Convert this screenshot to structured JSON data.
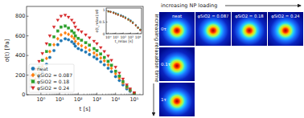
{
  "chart_data": [
    {
      "type": "scatter",
      "x_label": "t [s]",
      "y_label": "σ(t) [Pa]",
      "x": [
        0.3,
        0.5,
        0.8,
        1.2,
        2,
        3,
        5,
        8,
        12,
        20,
        30,
        45,
        60,
        70,
        100,
        150,
        250,
        400,
        700,
        1000,
        1600,
        2500,
        4000,
        6000,
        10000,
        16000,
        25000,
        40000,
        60000,
        100000
      ],
      "series": [
        {
          "name": "neat",
          "color": "#1f77b4",
          "marker": "circle",
          "values": [
            80,
            120,
            170,
            230,
            310,
            380,
            450,
            510,
            550,
            570,
            560,
            540,
            520,
            495,
            470,
            455,
            435,
            410,
            385,
            365,
            335,
            305,
            270,
            235,
            185,
            145,
            100,
            60,
            35,
            10
          ]
        },
        {
          "name": "φSiO2 = 0.087",
          "color": "#ff7f0e",
          "marker": "diamond",
          "values": [
            110,
            160,
            220,
            290,
            370,
            440,
            510,
            570,
            610,
            630,
            615,
            595,
            575,
            545,
            520,
            500,
            480,
            455,
            425,
            405,
            375,
            345,
            305,
            270,
            215,
            170,
            120,
            75,
            45,
            12
          ]
        },
        {
          "name": "φSiO2 = 0.18",
          "color": "#2ca02c",
          "marker": "square",
          "values": [
            150,
            210,
            280,
            350,
            440,
            510,
            590,
            650,
            690,
            700,
            680,
            650,
            630,
            600,
            575,
            555,
            530,
            505,
            470,
            450,
            415,
            380,
            340,
            300,
            240,
            190,
            135,
            85,
            50,
            15
          ]
        },
        {
          "name": "φSiO2 = 0.24",
          "color": "#d62728",
          "marker": "triangle-down",
          "values": [
            190,
            260,
            340,
            420,
            520,
            600,
            690,
            760,
            800,
            810,
            790,
            760,
            730,
            690,
            660,
            640,
            610,
            580,
            545,
            520,
            480,
            440,
            395,
            350,
            280,
            220,
            160,
            100,
            60,
            20
          ]
        }
      ],
      "log": "x",
      "xlim": [
        0.17,
        300000
      ],
      "ylim": [
        0,
        900
      ],
      "xticks": [
        {
          "value": 1,
          "label": "10⁰"
        },
        {
          "value": 10,
          "label": "10¹"
        },
        {
          "value": 100,
          "label": "10²"
        },
        {
          "value": 1000,
          "label": "10³"
        },
        {
          "value": 10000,
          "label": "10⁴"
        },
        {
          "value": 100000,
          "label": "10⁵"
        }
      ],
      "yticks": [
        0,
        200,
        400,
        600,
        800
      ],
      "grid": false,
      "legend": "lower left"
    },
    {
      "type": "scatter",
      "x_label": "t_relax [s]",
      "y_label": "σ(t_relax)/σ0",
      "x": [
        1,
        2,
        5,
        10,
        20,
        50,
        100,
        200,
        500,
        1000,
        2000,
        5000,
        10000,
        20000
      ],
      "series": [
        {
          "color": "#1f77b4",
          "marker": "circle",
          "values": [
            0.97,
            0.95,
            0.92,
            0.88,
            0.85,
            0.8,
            0.76,
            0.71,
            0.64,
            0.58,
            0.5,
            0.38,
            0.28,
            0.18
          ]
        },
        {
          "color": "#ff7f0e",
          "marker": "diamond",
          "values": [
            0.96,
            0.94,
            0.9,
            0.86,
            0.82,
            0.77,
            0.73,
            0.68,
            0.61,
            0.55,
            0.47,
            0.36,
            0.26,
            0.17
          ]
        },
        {
          "color": "#2ca02c",
          "marker": "square",
          "values": [
            0.95,
            0.93,
            0.89,
            0.85,
            0.81,
            0.76,
            0.72,
            0.67,
            0.6,
            0.54,
            0.46,
            0.35,
            0.25,
            0.16
          ]
        },
        {
          "color": "#d62728",
          "marker": "triangle-down",
          "values": [
            0.95,
            0.92,
            0.88,
            0.84,
            0.8,
            0.75,
            0.71,
            0.66,
            0.59,
            0.53,
            0.45,
            0.34,
            0.24,
            0.15
          ]
        }
      ],
      "log": "x",
      "xlim": [
        0.5,
        30000
      ],
      "ylim": [
        0,
        1.1
      ],
      "xticks": [
        {
          "value": 1,
          "label": "10⁰"
        },
        {
          "value": 10,
          "label": "10¹"
        },
        {
          "value": 100,
          "label": "10²"
        },
        {
          "value": 1000,
          "label": "10³"
        },
        {
          "value": 10000,
          "label": "10⁴"
        }
      ],
      "yticks": [
        0,
        0.5,
        1
      ],
      "grid": false
    }
  ],
  "pattern_grid": {
    "x_arrow": "increasing NP loading",
    "y_arrow": "increasing relaxation time",
    "columns": [
      "neat",
      "φSiO2 = 0.087",
      "φSiO2 = 0.18",
      "φSiO2 = 0.24"
    ],
    "rows": [
      "0τ",
      "0.1τ",
      "1τ"
    ],
    "cells": [
      [
        true,
        true,
        true,
        true
      ],
      [
        true,
        false,
        false,
        false
      ],
      [
        true,
        false,
        false,
        false
      ]
    ]
  }
}
